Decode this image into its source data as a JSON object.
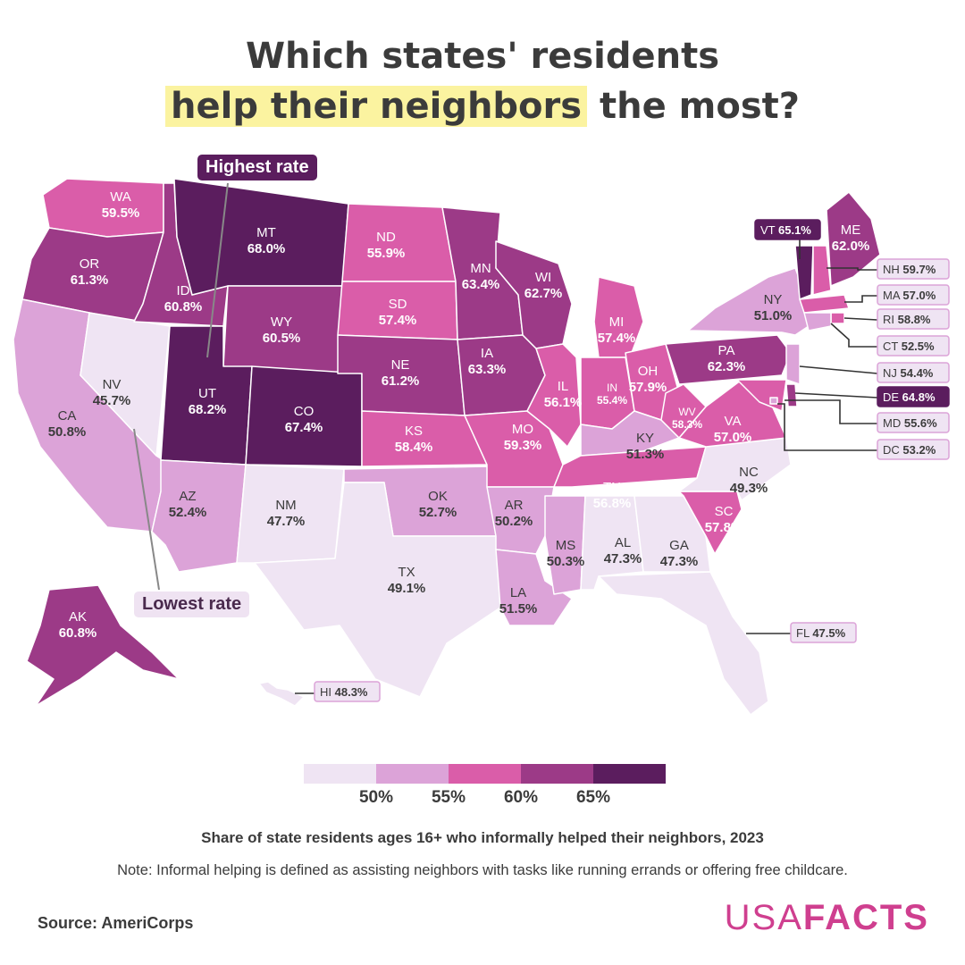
{
  "title": {
    "line1": "Which states' residents",
    "line2_highlight": "help their neighbors",
    "line2_rest": " the most?"
  },
  "callouts": {
    "highest": "Highest rate",
    "lowest": "Lowest rate"
  },
  "legend": {
    "colors": [
      "#efe4f3",
      "#dca3d8",
      "#da5da9",
      "#9c3a87",
      "#5b1d5e"
    ],
    "ticks": [
      "50%",
      "55%",
      "60%",
      "65%"
    ]
  },
  "caption": "Share of state residents ages 16+ who informally helped their neighbors, 2023",
  "note": "Note: Informal helping is defined as assisting neighbors with tasks like running errands or offering free childcare.",
  "source": "Source: AmeriCorps",
  "brand": {
    "part1": "USA",
    "part2": "FACTS"
  },
  "chart_data": {
    "type": "choropleth",
    "value_unit": "percent",
    "bins": [
      [
        0,
        50
      ],
      [
        50,
        55
      ],
      [
        55,
        60
      ],
      [
        60,
        65
      ],
      [
        65,
        100
      ]
    ],
    "states": [
      {
        "abbr": "WA",
        "value": 59.5,
        "label": "59.5%"
      },
      {
        "abbr": "OR",
        "value": 61.3,
        "label": "61.3%"
      },
      {
        "abbr": "CA",
        "value": 50.8,
        "label": "50.8%"
      },
      {
        "abbr": "NV",
        "value": 45.7,
        "label": "45.7%"
      },
      {
        "abbr": "ID",
        "value": 60.8,
        "label": "60.8%"
      },
      {
        "abbr": "MT",
        "value": 68.0,
        "label": "68.0%"
      },
      {
        "abbr": "WY",
        "value": 60.5,
        "label": "60.5%"
      },
      {
        "abbr": "UT",
        "value": 68.2,
        "label": "68.2%"
      },
      {
        "abbr": "AZ",
        "value": 52.4,
        "label": "52.4%"
      },
      {
        "abbr": "CO",
        "value": 67.4,
        "label": "67.4%"
      },
      {
        "abbr": "NM",
        "value": 47.7,
        "label": "47.7%"
      },
      {
        "abbr": "ND",
        "value": 55.9,
        "label": "55.9%"
      },
      {
        "abbr": "SD",
        "value": 57.4,
        "label": "57.4%"
      },
      {
        "abbr": "NE",
        "value": 61.2,
        "label": "61.2%"
      },
      {
        "abbr": "KS",
        "value": 58.4,
        "label": "58.4%"
      },
      {
        "abbr": "OK",
        "value": 52.7,
        "label": "52.7%"
      },
      {
        "abbr": "TX",
        "value": 49.1,
        "label": "49.1%"
      },
      {
        "abbr": "MN",
        "value": 63.4,
        "label": "63.4%"
      },
      {
        "abbr": "IA",
        "value": 63.3,
        "label": "63.3%"
      },
      {
        "abbr": "MO",
        "value": 59.3,
        "label": "59.3%"
      },
      {
        "abbr": "AR",
        "value": 50.2,
        "label": "50.2%"
      },
      {
        "abbr": "LA",
        "value": 51.5,
        "label": "51.5%"
      },
      {
        "abbr": "WI",
        "value": 62.7,
        "label": "62.7%"
      },
      {
        "abbr": "IL",
        "value": 56.1,
        "label": "56.1%"
      },
      {
        "abbr": "MI",
        "value": 57.4,
        "label": "57.4%"
      },
      {
        "abbr": "IN",
        "value": 55.4,
        "label": "55.4%"
      },
      {
        "abbr": "OH",
        "value": 57.9,
        "label": "57.9%"
      },
      {
        "abbr": "KY",
        "value": 51.3,
        "label": "51.3%"
      },
      {
        "abbr": "TN",
        "value": 56.8,
        "label": "56.8%"
      },
      {
        "abbr": "MS",
        "value": 50.3,
        "label": "50.3%"
      },
      {
        "abbr": "AL",
        "value": 47.3,
        "label": "47.3%"
      },
      {
        "abbr": "GA",
        "value": 47.3,
        "label": "47.3%"
      },
      {
        "abbr": "FL",
        "value": 47.5,
        "label": "47.5%"
      },
      {
        "abbr": "SC",
        "value": 57.8,
        "label": "57.8%"
      },
      {
        "abbr": "NC",
        "value": 49.3,
        "label": "49.3%"
      },
      {
        "abbr": "VA",
        "value": 57.0,
        "label": "57.0%"
      },
      {
        "abbr": "WV",
        "value": 58.3,
        "label": "58.3%"
      },
      {
        "abbr": "PA",
        "value": 62.3,
        "label": "62.3%"
      },
      {
        "abbr": "NY",
        "value": 51.0,
        "label": "51.0%"
      },
      {
        "abbr": "ME",
        "value": 62.0,
        "label": "62.0%"
      },
      {
        "abbr": "VT",
        "value": 65.1,
        "label": "65.1%"
      },
      {
        "abbr": "NH",
        "value": 59.7,
        "label": "59.7%"
      },
      {
        "abbr": "MA",
        "value": 57.0,
        "label": "57.0%"
      },
      {
        "abbr": "RI",
        "value": 58.8,
        "label": "58.8%"
      },
      {
        "abbr": "CT",
        "value": 52.5,
        "label": "52.5%"
      },
      {
        "abbr": "NJ",
        "value": 54.4,
        "label": "54.4%"
      },
      {
        "abbr": "DE",
        "value": 64.8,
        "label": "64.8%"
      },
      {
        "abbr": "MD",
        "value": 55.6,
        "label": "55.6%"
      },
      {
        "abbr": "DC",
        "value": 53.2,
        "label": "53.2%"
      },
      {
        "abbr": "AK",
        "value": 60.8,
        "label": "60.8%"
      },
      {
        "abbr": "HI",
        "value": 48.3,
        "label": "48.3%"
      }
    ]
  }
}
